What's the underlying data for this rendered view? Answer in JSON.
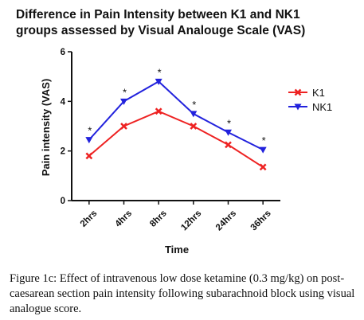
{
  "chart_data": {
    "type": "line",
    "title_lines": [
      "Difference in Pain Intensity between K1 and NK1",
      "groups assessed by Visual Analouge Scale (VAS)"
    ],
    "xlabel": "Time",
    "ylabel": "Pain intensity (VAS)",
    "categories": [
      "2hrs",
      "4hrs",
      "8hrs",
      "12hrs",
      "24hrs",
      "36hrs"
    ],
    "ylim": [
      0,
      6
    ],
    "yticks": [
      "0",
      "2",
      "4",
      "6"
    ],
    "grid": false,
    "legend_position": "right",
    "significance_marker": "*",
    "series": [
      {
        "name": "K1",
        "color": "#ee2222",
        "marker": "x-icon",
        "values": [
          1.8,
          3.0,
          3.6,
          3.0,
          2.25,
          1.35
        ]
      },
      {
        "name": "NK1",
        "color": "#2222dd",
        "marker": "triangle-down-icon",
        "values": [
          2.45,
          4.0,
          4.8,
          3.5,
          2.75,
          2.05
        ]
      }
    ]
  },
  "caption": {
    "label": "Figure 1c:",
    "text": " Effect of intravenous low dose ketamine (0.3 mg/kg) on post-caesarean section pain intensity following subarachnoid block using visual analogue score."
  }
}
